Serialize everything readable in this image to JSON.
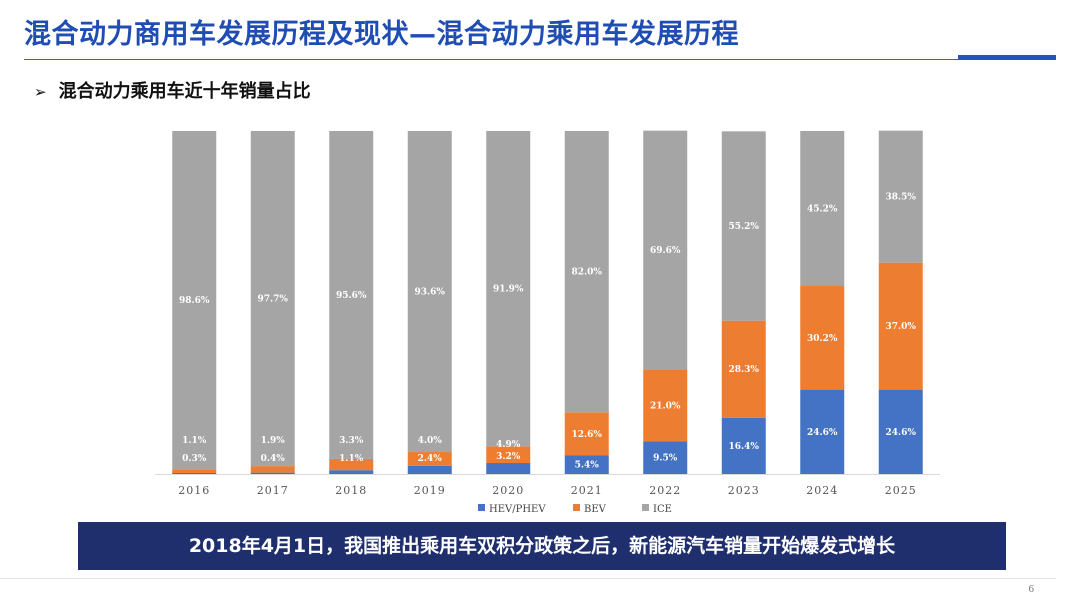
{
  "header": {
    "title": "混合动力商用车发展历程及现状—混合动力乘用车发展历程",
    "subtitle": "混合动力乘用车近十年销量占比",
    "subtitle_marker": "➢"
  },
  "chart_data": {
    "type": "stacked-bar",
    "categories": [
      "2016",
      "2017",
      "2018",
      "2019",
      "2020",
      "2021",
      "2022",
      "2023",
      "2024",
      "2025"
    ],
    "ylim": [
      0,
      100
    ],
    "series": [
      {
        "name": "HEV/PHEV",
        "color": "#4472c4",
        "values": [
          0.3,
          0.4,
          1.1,
          2.4,
          3.2,
          5.4,
          9.5,
          16.4,
          24.6,
          24.6
        ],
        "labels": [
          "0.3%",
          "0.4%",
          "1.1%",
          "2.4%",
          "3.2%",
          "5.4%",
          "9.5%",
          "16.4%",
          "24.6%",
          "24.6%"
        ]
      },
      {
        "name": "BEV",
        "color": "#ed7d31",
        "values": [
          1.1,
          1.9,
          3.3,
          4.0,
          4.9,
          12.6,
          21.0,
          28.3,
          30.2,
          37.0
        ],
        "labels": [
          "1.1%",
          "1.9%",
          "3.3%",
          "4.0%",
          "4.9%",
          "12.6%",
          "21.0%",
          "28.3%",
          "30.2%",
          "37.0%"
        ]
      },
      {
        "name": "ICE",
        "color": "#a5a5a5",
        "values": [
          98.6,
          97.7,
          95.6,
          93.6,
          91.9,
          82.0,
          69.6,
          55.2,
          45.2,
          38.5
        ],
        "labels": [
          "98.6%",
          "97.7%",
          "95.6%",
          "93.6%",
          "91.9%",
          "82.0%",
          "69.6%",
          "55.2%",
          "45.2%",
          "38.5%"
        ]
      }
    ],
    "legend_position": "bottom",
    "grid": false
  },
  "banner": {
    "text": "2018年4月1日，我国推出乘用车双积分政策之后，新能源汽车销量开始爆发式增长"
  },
  "footer": {
    "page_number": "6"
  }
}
